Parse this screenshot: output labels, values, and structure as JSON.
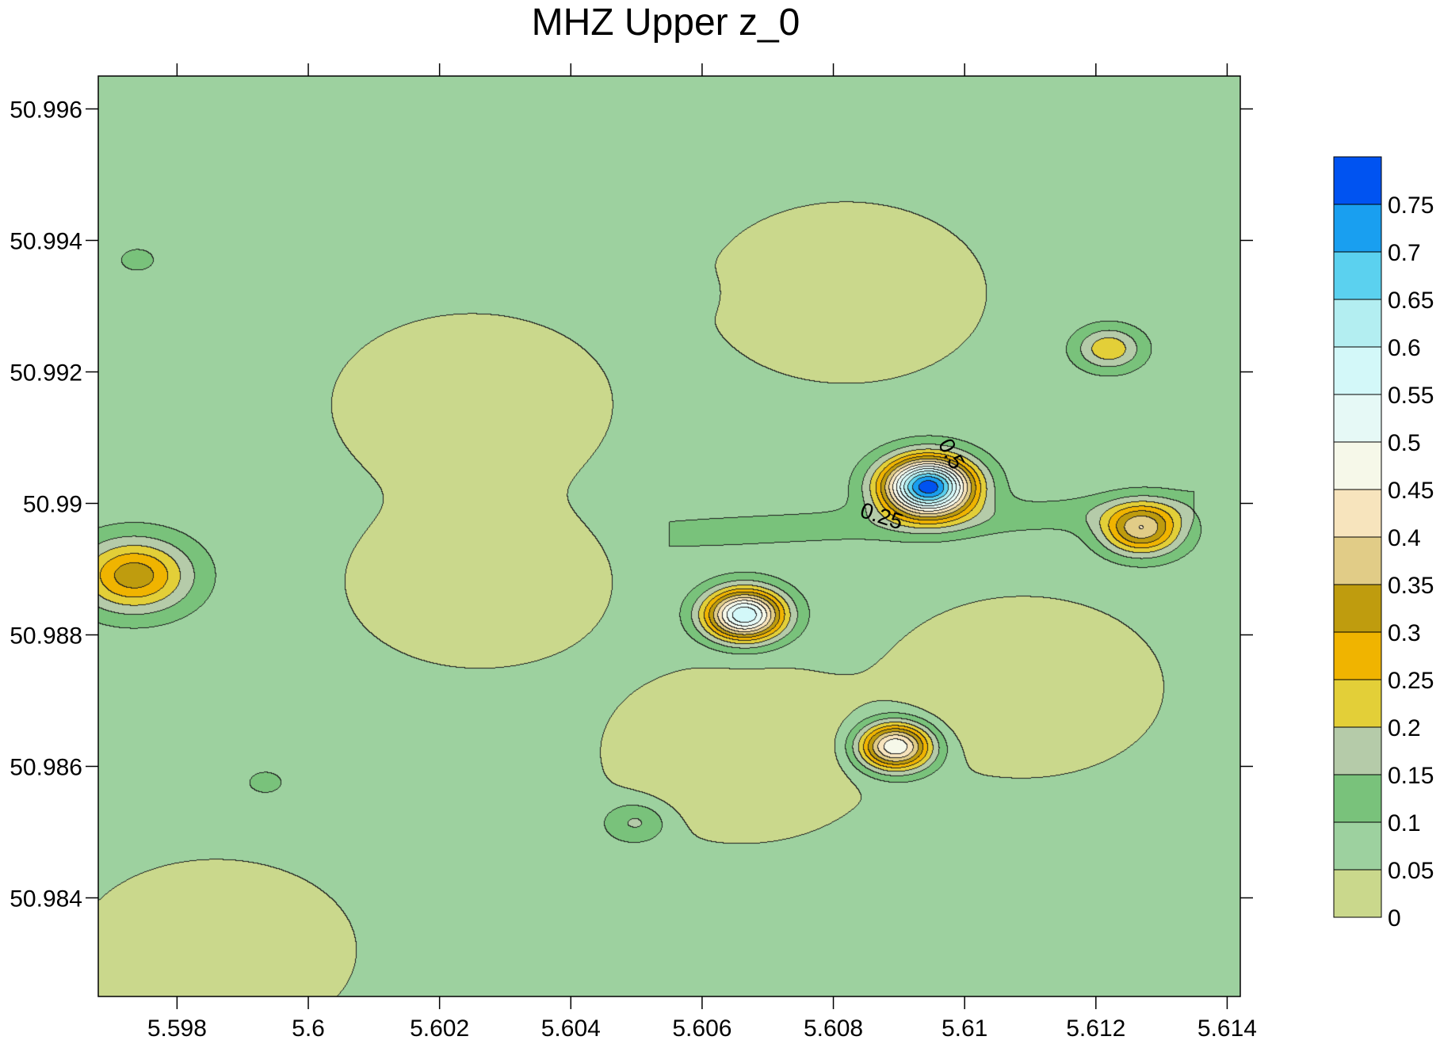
{
  "chart_data": {
    "type": "contour",
    "title": "MHZ Upper z_0",
    "xlabel": "",
    "ylabel": "",
    "xlim": [
      5.5968,
      5.6142
    ],
    "ylim": [
      50.9825,
      50.9965
    ],
    "x_ticks": [
      5.598,
      5.6,
      5.602,
      5.604,
      5.606,
      5.608,
      5.61,
      5.612,
      5.614
    ],
    "x_tick_labels": [
      "5.598",
      "5.6",
      "5.602",
      "5.604",
      "5.606",
      "5.608",
      "5.61",
      "5.612",
      "5.614"
    ],
    "y_ticks": [
      50.996,
      50.994,
      50.992,
      50.99,
      50.988,
      50.986,
      50.984
    ],
    "y_tick_labels": [
      "50.996",
      "50.994",
      "50.992",
      "50.99",
      "50.988",
      "50.986",
      "50.984"
    ],
    "grid": false,
    "legend": "right",
    "colorbar": {
      "levels": [
        0,
        0.05,
        0.1,
        0.15,
        0.2,
        0.25,
        0.3,
        0.35,
        0.4,
        0.45,
        0.5,
        0.55,
        0.6,
        0.65,
        0.7,
        0.75,
        0.8
      ],
      "labels": [
        "0",
        "0.05",
        "0.1",
        "0.15",
        "0.2",
        "0.25",
        "0.3",
        "0.35",
        "0.4",
        "0.45",
        "0.5",
        "0.55",
        "0.6",
        "0.65",
        "0.7",
        "0.75"
      ],
      "colors": [
        "#cad88c",
        "#9dd19f",
        "#79c27b",
        "#b5cba9",
        "#e3cf38",
        "#f0b400",
        "#bf9c0e",
        "#e1cc87",
        "#f7e4bd",
        "#f6f8e9",
        "#e6f9f6",
        "#d3f8f9",
        "#b3eef1",
        "#5bd1ef",
        "#199ff0",
        "#0053f1"
      ]
    },
    "contour_labels": [
      {
        "text": "0.25",
        "x": 5.6087,
        "y": 50.9897
      },
      {
        "text": "0.5",
        "x": 5.6097,
        "y": 50.9907
      }
    ],
    "peaks": [
      {
        "x": 5.60945,
        "y": 50.99025,
        "value": 0.78
      },
      {
        "x": 5.60665,
        "y": 50.9883,
        "value": 0.6
      },
      {
        "x": 5.60895,
        "y": 50.9863,
        "value": 0.52
      },
      {
        "x": 5.6127,
        "y": 50.9896,
        "value": 0.38
      },
      {
        "x": 5.59735,
        "y": 50.9889,
        "value": 0.33
      },
      {
        "x": 5.6122,
        "y": 50.99235,
        "value": 0.24
      },
      {
        "x": 5.605,
        "y": 50.98515,
        "value": 0.17
      },
      {
        "x": 5.5974,
        "y": 50.9937,
        "value": 0.11
      },
      {
        "x": 5.6057,
        "y": 50.9932,
        "value": 0.11
      },
      {
        "x": 5.59935,
        "y": 50.98575,
        "value": 0.11
      }
    ],
    "lows": [
      {
        "x": 5.6025,
        "y": 50.9915,
        "value": 0.0
      },
      {
        "x": 5.6026,
        "y": 50.9888,
        "value": 0.01
      },
      {
        "x": 5.6082,
        "y": 50.9932,
        "value": 0.0
      },
      {
        "x": 5.6109,
        "y": 50.9872,
        "value": 0.0
      },
      {
        "x": 5.6066,
        "y": 50.9862,
        "value": 0.0
      },
      {
        "x": 5.5986,
        "y": 50.9832,
        "value": 0.0
      }
    ]
  }
}
